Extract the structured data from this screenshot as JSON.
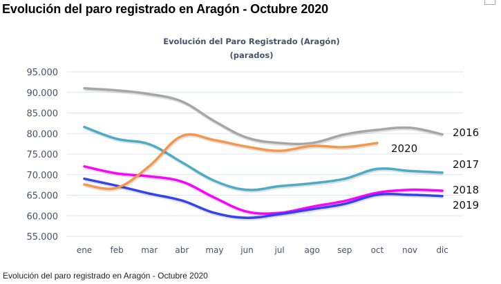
{
  "page": {
    "title": "Evolución del paro registrado en Aragón - Octubre 2020",
    "caption": "Evolución del paro registrado en Aragón - Octubre 2020"
  },
  "chart_data": {
    "type": "line",
    "title": "Evolución del Paro Registrado (Aragón)",
    "subtitle": "(parados)",
    "xlabel": "",
    "ylabel": "",
    "categories": [
      "ene",
      "feb",
      "mar",
      "abr",
      "may",
      "jun",
      "jul",
      "ago",
      "sep",
      "oct",
      "nov",
      "dic"
    ],
    "ylim": [
      55000,
      95000
    ],
    "yticks": [
      95000,
      90000,
      85000,
      80000,
      75000,
      70000,
      65000,
      60000,
      55000
    ],
    "ytick_labels": [
      "95.000",
      "90.000",
      "85.000",
      "80.000",
      "75.000",
      "70.000",
      "65.000",
      "60.000",
      "55.000"
    ],
    "grid": true,
    "legend": "inline-right",
    "series": [
      {
        "name": "2016",
        "color": "#a6a6a6",
        "values": [
          91000,
          90500,
          89600,
          87800,
          83000,
          79000,
          77700,
          77700,
          79800,
          80900,
          81400,
          79800
        ]
      },
      {
        "name": "2017",
        "color": "#4bacc6",
        "values": [
          81600,
          78700,
          77400,
          73000,
          68500,
          66300,
          67200,
          67900,
          69000,
          71400,
          70900,
          70500
        ]
      },
      {
        "name": "2018",
        "color": "#ff00ff",
        "values": [
          72000,
          70300,
          69600,
          68300,
          64400,
          61000,
          60700,
          62200,
          63600,
          65600,
          66300,
          66100
        ]
      },
      {
        "name": "2019",
        "color": "#3344ee",
        "values": [
          69000,
          67300,
          65400,
          63700,
          60700,
          59500,
          60400,
          61600,
          62900,
          65100,
          65100,
          64800
        ]
      },
      {
        "name": "2020",
        "color": "#f79646",
        "values": [
          67600,
          66800,
          72100,
          79400,
          78400,
          76800,
          75800,
          77000,
          76700,
          77700
        ]
      }
    ]
  }
}
